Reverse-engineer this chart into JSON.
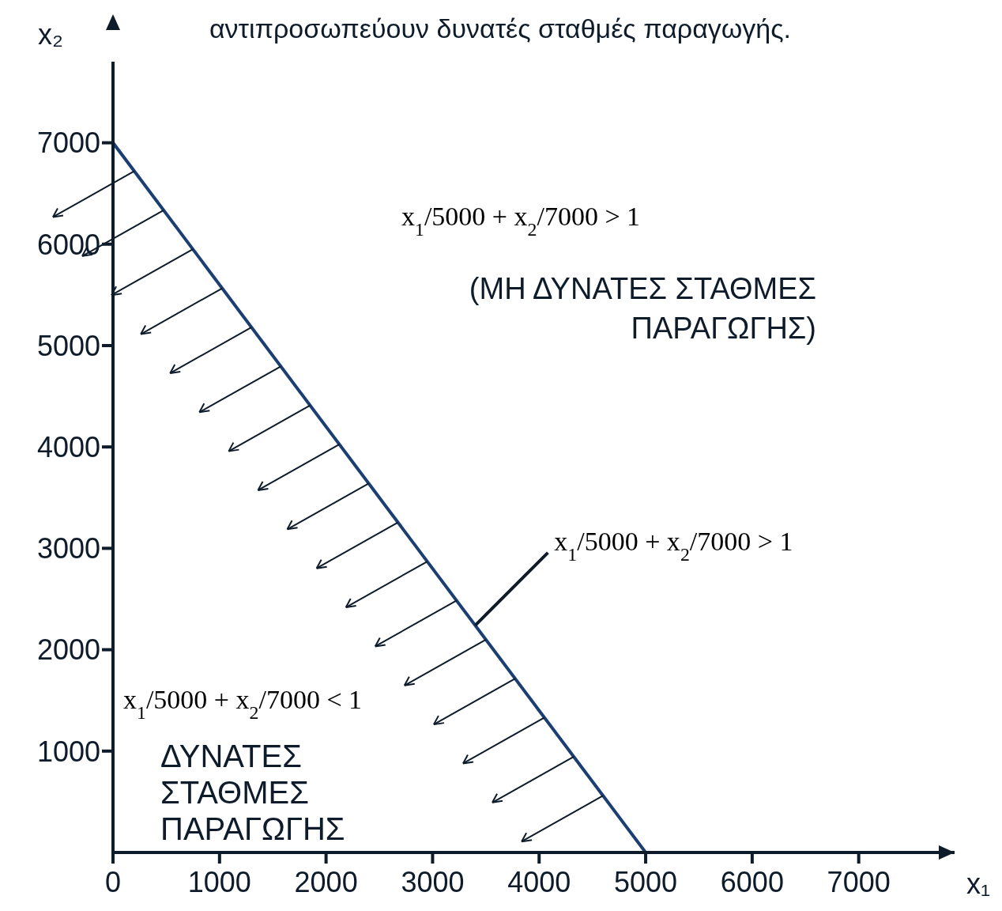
{
  "chart_data": {
    "type": "line",
    "title": "αντιπροσωπεύουν δυνατές σταθμές παραγωγής.",
    "xlabel": "x₁",
    "ylabel": "x₂",
    "x": [
      0,
      5000
    ],
    "series": [
      {
        "color": "#1b3f73",
        "values": [
          7000,
          0
        ]
      }
    ],
    "xlim": [
      0,
      7900
    ],
    "ylim": [
      0,
      7800
    ],
    "xticks": [
      0,
      1000,
      2000,
      3000,
      4000,
      5000,
      6000,
      7000
    ],
    "yticks": [
      1000,
      2000,
      3000,
      4000,
      5000,
      6000,
      7000
    ],
    "grid": false,
    "legend": false,
    "marker": "none",
    "line_style": "solid",
    "annotations": [
      "x$_{1}$/5000 + x$_{2}$/7000 > 1",
      "(ΜΗ ΔΥΝΑΤΕΣ ΣΤΑΘΜΕΣ ΠΑΡΑΓΩΓΗΣ)",
      {
        "text": "x$_{1}$/5000 + x$_{2}$/7000 > 1",
        "x": 3400,
        "y": 2240
      },
      "x$_{1}$/5000 + x$_{2}$/7000 < 1",
      "ΔΥΝΑΤΕΣ ΣΤΑΘΜΕΣ ΠΑΡΑΓΩΓΗΣ"
    ]
  }
}
